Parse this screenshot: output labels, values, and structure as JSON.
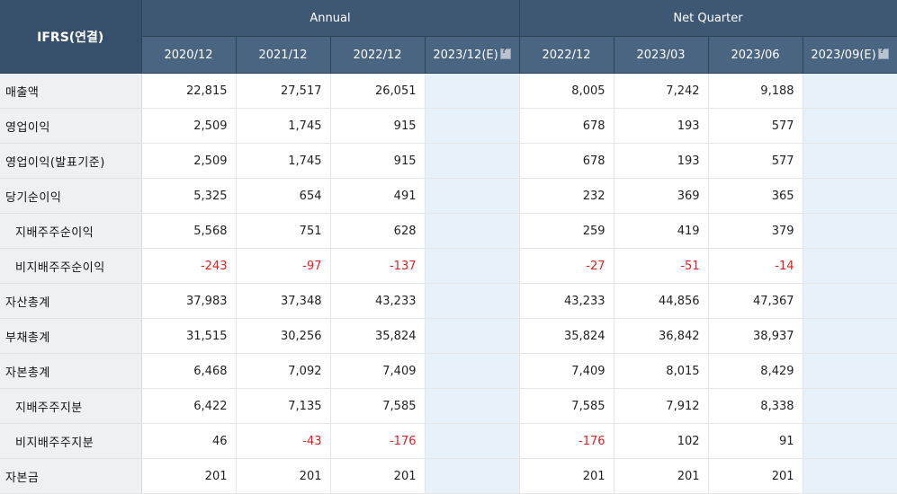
{
  "header": {
    "corner_label": "IFRS(연결)",
    "annual_label": "Annual",
    "quarter_label": "Net Quarter",
    "annual_periods": [
      "2020/12",
      "2021/12",
      "2022/12",
      "2023/12(E)"
    ],
    "quarter_periods": [
      "2022/12",
      "2023/03",
      "2023/06",
      "2023/09(E)"
    ]
  },
  "rows": [
    {
      "label": "매출액",
      "annual": [
        "22,815",
        "27,517",
        "26,051",
        ""
      ],
      "quarter": [
        "8,005",
        "7,242",
        "9,188",
        ""
      ]
    },
    {
      "label": "영업이익",
      "annual": [
        "2,509",
        "1,745",
        "915",
        ""
      ],
      "quarter": [
        "678",
        "193",
        "577",
        ""
      ]
    },
    {
      "label": "영업이익(발표기준)",
      "annual": [
        "2,509",
        "1,745",
        "915",
        ""
      ],
      "quarter": [
        "678",
        "193",
        "577",
        ""
      ]
    },
    {
      "label": "당기순이익",
      "annual": [
        "5,325",
        "654",
        "491",
        ""
      ],
      "quarter": [
        "232",
        "369",
        "365",
        ""
      ]
    },
    {
      "label": "지배주주순이익",
      "annual": [
        "5,568",
        "751",
        "628",
        ""
      ],
      "quarter": [
        "259",
        "419",
        "379",
        ""
      ]
    },
    {
      "label": "비지배주주순이익",
      "annual": [
        "-243",
        "-97",
        "-137",
        ""
      ],
      "quarter": [
        "-27",
        "-51",
        "-14",
        ""
      ]
    },
    {
      "label": "자산총계",
      "annual": [
        "37,983",
        "37,348",
        "43,233",
        ""
      ],
      "quarter": [
        "43,233",
        "44,856",
        "47,367",
        ""
      ]
    },
    {
      "label": "부채총계",
      "annual": [
        "31,515",
        "30,256",
        "35,824",
        ""
      ],
      "quarter": [
        "35,824",
        "36,842",
        "38,937",
        ""
      ]
    },
    {
      "label": "자본총계",
      "annual": [
        "6,468",
        "7,092",
        "7,409",
        ""
      ],
      "quarter": [
        "7,409",
        "8,015",
        "8,429",
        ""
      ]
    },
    {
      "label": "지배주주지분",
      "annual": [
        "6,422",
        "7,135",
        "7,585",
        ""
      ],
      "quarter": [
        "7,585",
        "7,912",
        "8,338",
        ""
      ]
    },
    {
      "label": "비지배주주지분",
      "annual": [
        "46",
        "-43",
        "-176",
        ""
      ],
      "quarter": [
        "-176",
        "102",
        "91",
        ""
      ]
    },
    {
      "label": "자본금",
      "annual": [
        "201",
        "201",
        "201",
        ""
      ],
      "quarter": [
        "201",
        "201",
        "201",
        ""
      ]
    }
  ],
  "colors": {
    "header_bg": "#3e5873",
    "estimate_cell_bg": "#e6f1f9",
    "negative_text": "#e21c1c",
    "label_bg": "#eef0f3"
  },
  "icons": {
    "estimate_help": "help-icon"
  }
}
